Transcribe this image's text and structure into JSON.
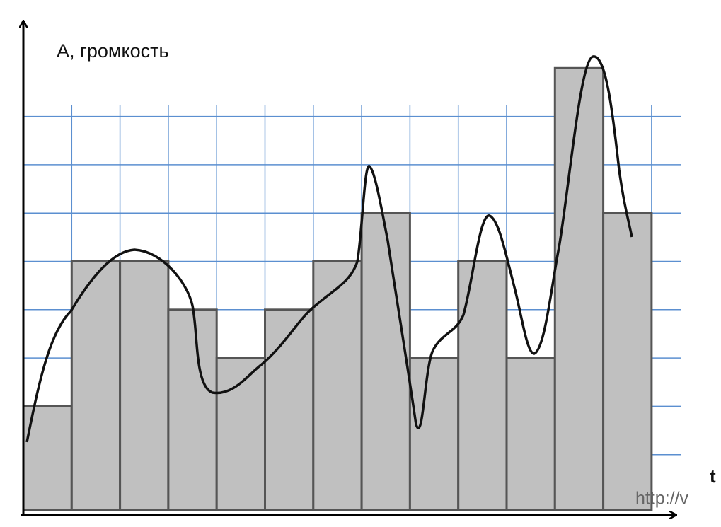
{
  "chart_data": {
    "type": "bar",
    "y_label": "А, громкость",
    "x_label": "t",
    "watermark": "http://v",
    "values": [
      2,
      5,
      5,
      4,
      3,
      4,
      5,
      6,
      3,
      5,
      3,
      9,
      6
    ],
    "color": "#c0c0c0",
    "ylim": [
      0,
      10
    ],
    "yticks": [
      1,
      2,
      3,
      4,
      5,
      6,
      7,
      8
    ],
    "grid": true
  }
}
